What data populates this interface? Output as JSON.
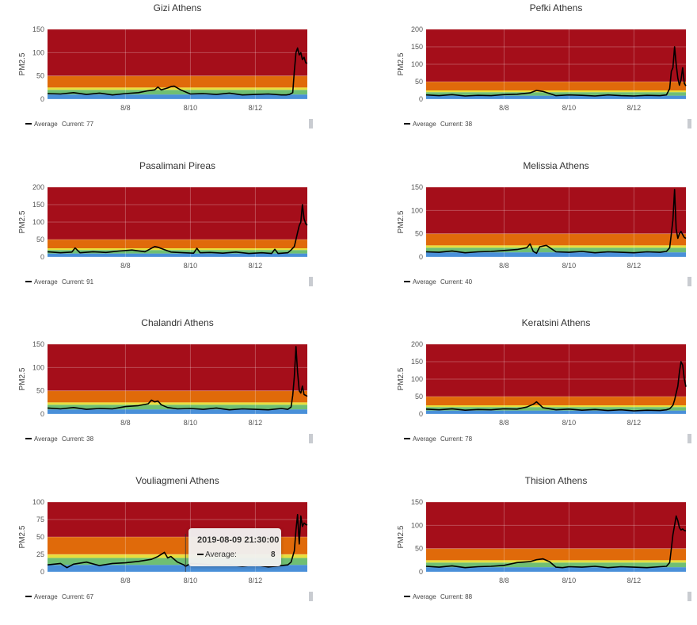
{
  "colors": {
    "band_blue": "#4a90d9",
    "band_green": "#6fbf73",
    "band_yellow": "#e8df3c",
    "band_orange": "#e06a0a",
    "band_red": "#a50e1a",
    "line": "#000000"
  },
  "tooltip": {
    "time": "2019-08-09 21:30:00",
    "label": "Average:",
    "value": "8"
  },
  "chart_data": [
    {
      "type": "line",
      "title": "Gizi Athens",
      "ylabel": "PM2.5",
      "ylim": [
        0,
        150
      ],
      "yticks": [
        0,
        50,
        100,
        150
      ],
      "xticks": [
        "8/8",
        "8/10",
        "8/12"
      ],
      "xtick_pos": [
        3.0,
        5.0,
        7.0
      ],
      "xlim": [
        0.6,
        8.6
      ],
      "bands": [
        [
          0,
          10
        ],
        [
          10,
          20
        ],
        [
          20,
          25
        ],
        [
          25,
          50
        ],
        [
          50,
          150
        ]
      ],
      "series": [
        {
          "name": "Average",
          "x": [
            0.6,
            1.0,
            1.4,
            1.8,
            2.2,
            2.6,
            3.0,
            3.4,
            3.7,
            3.9,
            4.0,
            4.1,
            4.3,
            4.4,
            4.5,
            4.7,
            5.0,
            5.4,
            5.8,
            6.2,
            6.6,
            7.0,
            7.4,
            7.8,
            7.95,
            8.05,
            8.15,
            8.2,
            8.25,
            8.3,
            8.35,
            8.4,
            8.45,
            8.5,
            8.55,
            8.6
          ],
          "values": [
            12,
            11,
            14,
            10,
            13,
            9,
            12,
            14,
            18,
            20,
            26,
            20,
            24,
            27,
            28,
            20,
            11,
            12,
            10,
            13,
            9,
            10,
            11,
            9,
            9,
            10,
            14,
            60,
            100,
            110,
            95,
            100,
            85,
            90,
            78,
            77
          ]
        }
      ],
      "legend": "Average",
      "current_label": "Current: 77"
    },
    {
      "type": "line",
      "title": "Pefki Athens",
      "ylabel": "PM2.5",
      "ylim": [
        0,
        200
      ],
      "yticks": [
        0,
        50,
        100,
        150,
        200
      ],
      "xticks": [
        "8/8",
        "8/10",
        "8/12"
      ],
      "xtick_pos": [
        3.0,
        5.0,
        7.0
      ],
      "xlim": [
        0.6,
        8.6
      ],
      "bands": [
        [
          0,
          10
        ],
        [
          10,
          20
        ],
        [
          20,
          25
        ],
        [
          25,
          50
        ],
        [
          50,
          200
        ]
      ],
      "series": [
        {
          "name": "Average",
          "x": [
            0.6,
            1.0,
            1.4,
            1.8,
            2.2,
            2.6,
            3.0,
            3.4,
            3.8,
            4.0,
            4.2,
            4.6,
            5.0,
            5.4,
            5.8,
            6.2,
            6.6,
            7.0,
            7.4,
            7.8,
            8.0,
            8.1,
            8.15,
            8.2,
            8.25,
            8.3,
            8.35,
            8.4,
            8.45,
            8.5,
            8.55,
            8.6
          ],
          "values": [
            12,
            10,
            13,
            9,
            11,
            10,
            13,
            14,
            18,
            25,
            22,
            10,
            12,
            11,
            9,
            12,
            10,
            9,
            11,
            10,
            12,
            30,
            80,
            90,
            150,
            100,
            60,
            40,
            55,
            90,
            45,
            38
          ]
        }
      ],
      "legend": "Average",
      "current_label": "Current: 38"
    },
    {
      "type": "line",
      "title": "Pasalimani Pireas",
      "ylabel": "PM2.5",
      "ylim": [
        0,
        200
      ],
      "yticks": [
        0,
        50,
        100,
        150,
        200
      ],
      "xticks": [
        "8/8",
        "8/10",
        "8/12"
      ],
      "xtick_pos": [
        3.0,
        5.0,
        7.0
      ],
      "xlim": [
        0.6,
        8.6
      ],
      "bands": [
        [
          0,
          10
        ],
        [
          10,
          20
        ],
        [
          20,
          25
        ],
        [
          25,
          50
        ],
        [
          50,
          200
        ]
      ],
      "series": [
        {
          "name": "Average",
          "x": [
            0.6,
            1.0,
            1.35,
            1.45,
            1.6,
            2.0,
            2.4,
            2.8,
            3.2,
            3.6,
            3.9,
            4.0,
            4.4,
            4.8,
            5.1,
            5.2,
            5.3,
            5.6,
            6.0,
            6.4,
            6.8,
            7.2,
            7.5,
            7.6,
            7.7,
            8.0,
            8.1,
            8.2,
            8.25,
            8.3,
            8.35,
            8.4,
            8.45,
            8.5,
            8.55,
            8.6
          ],
          "values": [
            15,
            12,
            14,
            26,
            12,
            15,
            13,
            17,
            20,
            15,
            30,
            28,
            14,
            12,
            11,
            25,
            12,
            13,
            11,
            14,
            10,
            12,
            10,
            22,
            10,
            12,
            20,
            30,
            50,
            70,
            90,
            100,
            150,
            110,
            95,
            91
          ]
        }
      ],
      "legend": "Average",
      "current_label": "Current: 91"
    },
    {
      "type": "line",
      "title": "Melissia Athens",
      "ylabel": "PM2.5",
      "ylim": [
        0,
        150
      ],
      "yticks": [
        0,
        50,
        100,
        150
      ],
      "xticks": [
        "8/8",
        "8/10",
        "8/12"
      ],
      "xtick_pos": [
        3.0,
        5.0,
        7.0
      ],
      "xlim": [
        0.6,
        8.6
      ],
      "bands": [
        [
          0,
          10
        ],
        [
          10,
          20
        ],
        [
          20,
          25
        ],
        [
          25,
          50
        ],
        [
          50,
          150
        ]
      ],
      "series": [
        {
          "name": "Average",
          "x": [
            0.6,
            1.0,
            1.4,
            1.8,
            2.2,
            2.6,
            3.0,
            3.4,
            3.7,
            3.8,
            3.9,
            4.0,
            4.1,
            4.3,
            4.6,
            5.0,
            5.4,
            5.8,
            6.2,
            6.6,
            7.0,
            7.4,
            7.8,
            8.0,
            8.1,
            8.15,
            8.2,
            8.25,
            8.3,
            8.35,
            8.4,
            8.45,
            8.5,
            8.55,
            8.6
          ],
          "values": [
            11,
            10,
            13,
            9,
            11,
            12,
            14,
            16,
            20,
            28,
            12,
            8,
            22,
            25,
            11,
            10,
            12,
            9,
            11,
            10,
            9,
            11,
            10,
            12,
            20,
            50,
            80,
            145,
            60,
            40,
            50,
            55,
            48,
            42,
            40
          ]
        }
      ],
      "legend": "Average",
      "current_label": "Current: 40"
    },
    {
      "type": "line",
      "title": "Chalandri Athens",
      "ylabel": "PM2.5",
      "ylim": [
        0,
        150
      ],
      "yticks": [
        0,
        50,
        100,
        150
      ],
      "xticks": [
        "8/8",
        "8/10",
        "8/12"
      ],
      "xtick_pos": [
        3.0,
        5.0,
        7.0
      ],
      "xlim": [
        0.6,
        8.6
      ],
      "bands": [
        [
          0,
          10
        ],
        [
          10,
          20
        ],
        [
          20,
          25
        ],
        [
          25,
          50
        ],
        [
          50,
          150
        ]
      ],
      "series": [
        {
          "name": "Average",
          "x": [
            0.6,
            1.0,
            1.4,
            1.8,
            2.2,
            2.6,
            3.0,
            3.4,
            3.7,
            3.8,
            3.9,
            4.0,
            4.1,
            4.3,
            4.6,
            5.0,
            5.4,
            5.8,
            6.2,
            6.6,
            7.0,
            7.4,
            7.8,
            8.0,
            8.1,
            8.15,
            8.2,
            8.25,
            8.3,
            8.35,
            8.4,
            8.45,
            8.5,
            8.55,
            8.6
          ],
          "values": [
            13,
            11,
            14,
            10,
            12,
            11,
            16,
            18,
            22,
            30,
            26,
            28,
            20,
            14,
            11,
            12,
            10,
            13,
            9,
            11,
            10,
            9,
            12,
            10,
            15,
            40,
            80,
            145,
            90,
            50,
            45,
            60,
            42,
            40,
            38
          ]
        }
      ],
      "legend": "Average",
      "current_label": "Current: 38"
    },
    {
      "type": "line",
      "title": "Keratsini Athens",
      "ylabel": "PM2.5",
      "ylim": [
        0,
        200
      ],
      "yticks": [
        0,
        50,
        100,
        150,
        200
      ],
      "xticks": [
        "8/8",
        "8/10",
        "8/12"
      ],
      "xtick_pos": [
        3.0,
        5.0,
        7.0
      ],
      "xlim": [
        0.6,
        8.6
      ],
      "bands": [
        [
          0,
          10
        ],
        [
          10,
          20
        ],
        [
          20,
          25
        ],
        [
          25,
          50
        ],
        [
          50,
          200
        ]
      ],
      "series": [
        {
          "name": "Average",
          "x": [
            0.6,
            1.0,
            1.4,
            1.8,
            2.2,
            2.6,
            3.0,
            3.4,
            3.7,
            3.9,
            4.0,
            4.2,
            4.6,
            5.0,
            5.4,
            5.8,
            6.2,
            6.6,
            7.0,
            7.4,
            7.8,
            8.0,
            8.1,
            8.2,
            8.25,
            8.3,
            8.35,
            8.4,
            8.45,
            8.5,
            8.55,
            8.6
          ],
          "values": [
            14,
            12,
            15,
            11,
            13,
            12,
            15,
            14,
            20,
            28,
            35,
            18,
            12,
            14,
            11,
            13,
            10,
            12,
            9,
            11,
            10,
            12,
            15,
            25,
            40,
            60,
            80,
            120,
            150,
            140,
            100,
            78
          ]
        }
      ],
      "legend": "Average",
      "current_label": "Current: 78"
    },
    {
      "type": "line",
      "title": "Vouliagmeni Athens",
      "ylabel": "PM2.5",
      "ylim": [
        0,
        100
      ],
      "yticks": [
        0,
        25,
        50,
        75,
        100
      ],
      "xticks": [
        "8/8",
        "8/10",
        "8/12"
      ],
      "xtick_pos": [
        3.0,
        5.0,
        7.0
      ],
      "xlim": [
        0.6,
        8.6
      ],
      "bands": [
        [
          0,
          10
        ],
        [
          10,
          20
        ],
        [
          20,
          25
        ],
        [
          25,
          50
        ],
        [
          50,
          100
        ]
      ],
      "series": [
        {
          "name": "Average",
          "x": [
            0.6,
            1.0,
            1.2,
            1.4,
            1.8,
            2.2,
            2.6,
            3.0,
            3.4,
            3.8,
            4.0,
            4.2,
            4.3,
            4.4,
            4.6,
            4.8,
            4.85,
            5.0,
            5.4,
            5.8,
            6.2,
            6.6,
            7.0,
            7.4,
            7.8,
            8.0,
            8.1,
            8.2,
            8.25,
            8.3,
            8.35,
            8.4,
            8.45,
            8.5,
            8.55,
            8.6
          ],
          "values": [
            10,
            12,
            6,
            11,
            14,
            9,
            12,
            13,
            15,
            18,
            22,
            28,
            20,
            22,
            14,
            10,
            8,
            12,
            11,
            9,
            10,
            8,
            10,
            7,
            9,
            10,
            14,
            30,
            60,
            82,
            40,
            80,
            65,
            70,
            68,
            67
          ]
        }
      ],
      "legend": "Average",
      "current_label": "Current: 67",
      "crosshair_x": 4.85
    },
    {
      "type": "line",
      "title": "Thision Athens",
      "ylabel": "PM2.5",
      "ylim": [
        0,
        150
      ],
      "yticks": [
        0,
        50,
        100,
        150
      ],
      "xticks": [
        "8/8",
        "8/10",
        "8/12"
      ],
      "xtick_pos": [
        3.0,
        5.0,
        7.0
      ],
      "xlim": [
        0.6,
        8.6
      ],
      "bands": [
        [
          0,
          10
        ],
        [
          10,
          20
        ],
        [
          20,
          25
        ],
        [
          25,
          50
        ],
        [
          50,
          150
        ]
      ],
      "series": [
        {
          "name": "Average",
          "x": [
            0.6,
            1.0,
            1.4,
            1.8,
            2.2,
            2.6,
            3.0,
            3.4,
            3.8,
            4.0,
            4.2,
            4.4,
            4.6,
            4.8,
            5.0,
            5.4,
            5.8,
            6.2,
            6.6,
            7.0,
            7.4,
            7.8,
            8.0,
            8.1,
            8.15,
            8.2,
            8.25,
            8.3,
            8.35,
            8.4,
            8.45,
            8.5,
            8.55,
            8.6
          ],
          "values": [
            12,
            10,
            13,
            9,
            11,
            12,
            14,
            20,
            22,
            26,
            28,
            22,
            10,
            9,
            11,
            10,
            12,
            9,
            11,
            10,
            9,
            11,
            12,
            20,
            50,
            80,
            100,
            120,
            110,
            95,
            90,
            92,
            89,
            88
          ]
        }
      ],
      "legend": "Average",
      "current_label": "Current: 88"
    }
  ]
}
